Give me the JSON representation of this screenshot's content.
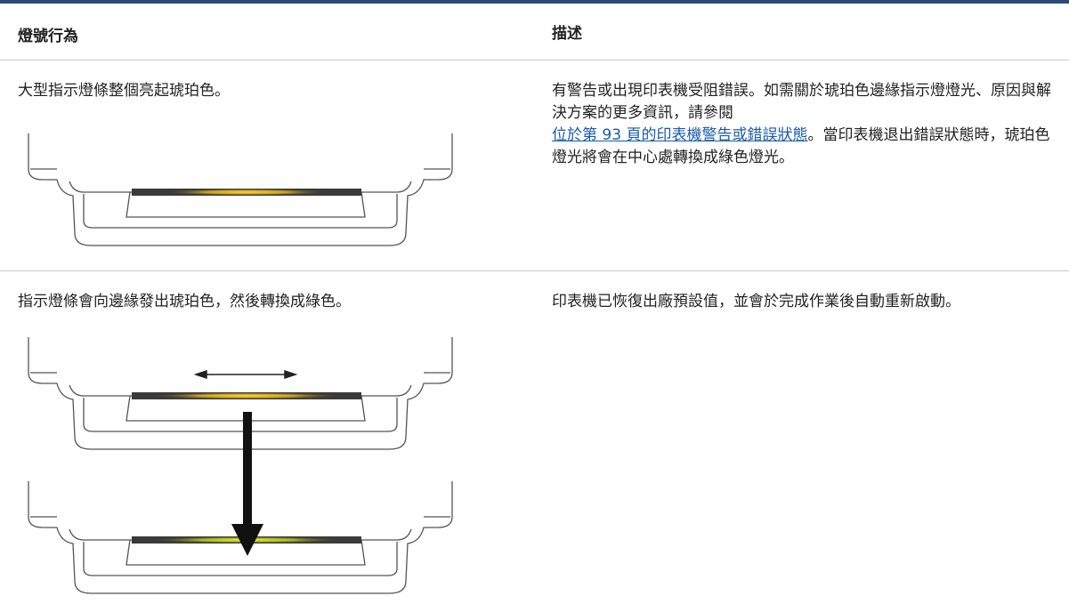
{
  "table": {
    "headers": [
      "燈號行為",
      "描述"
    ],
    "rows": [
      {
        "behavior": "大型指示燈條整個亮起琥珀色。",
        "description": [
          "有警告或出現印表機受阻錯誤。如需關於琥珀色邊緣指示燈燈光、原因與解決方案的更多資訊，請參閱",
          "位於第 93 頁的印表機警告或錯誤狀態",
          "。當印表機退出錯誤狀態時，琥珀色燈光將會在中心處轉換成綠色燈光。"
        ]
      },
      {
        "behavior": "指示燈條會向邊緣發出琥珀色，然後轉換成綠色。",
        "description": [
          "印表機已恢復出廠預設值，並會於完成作業後自動重新啟動。"
        ]
      }
    ]
  }
}
